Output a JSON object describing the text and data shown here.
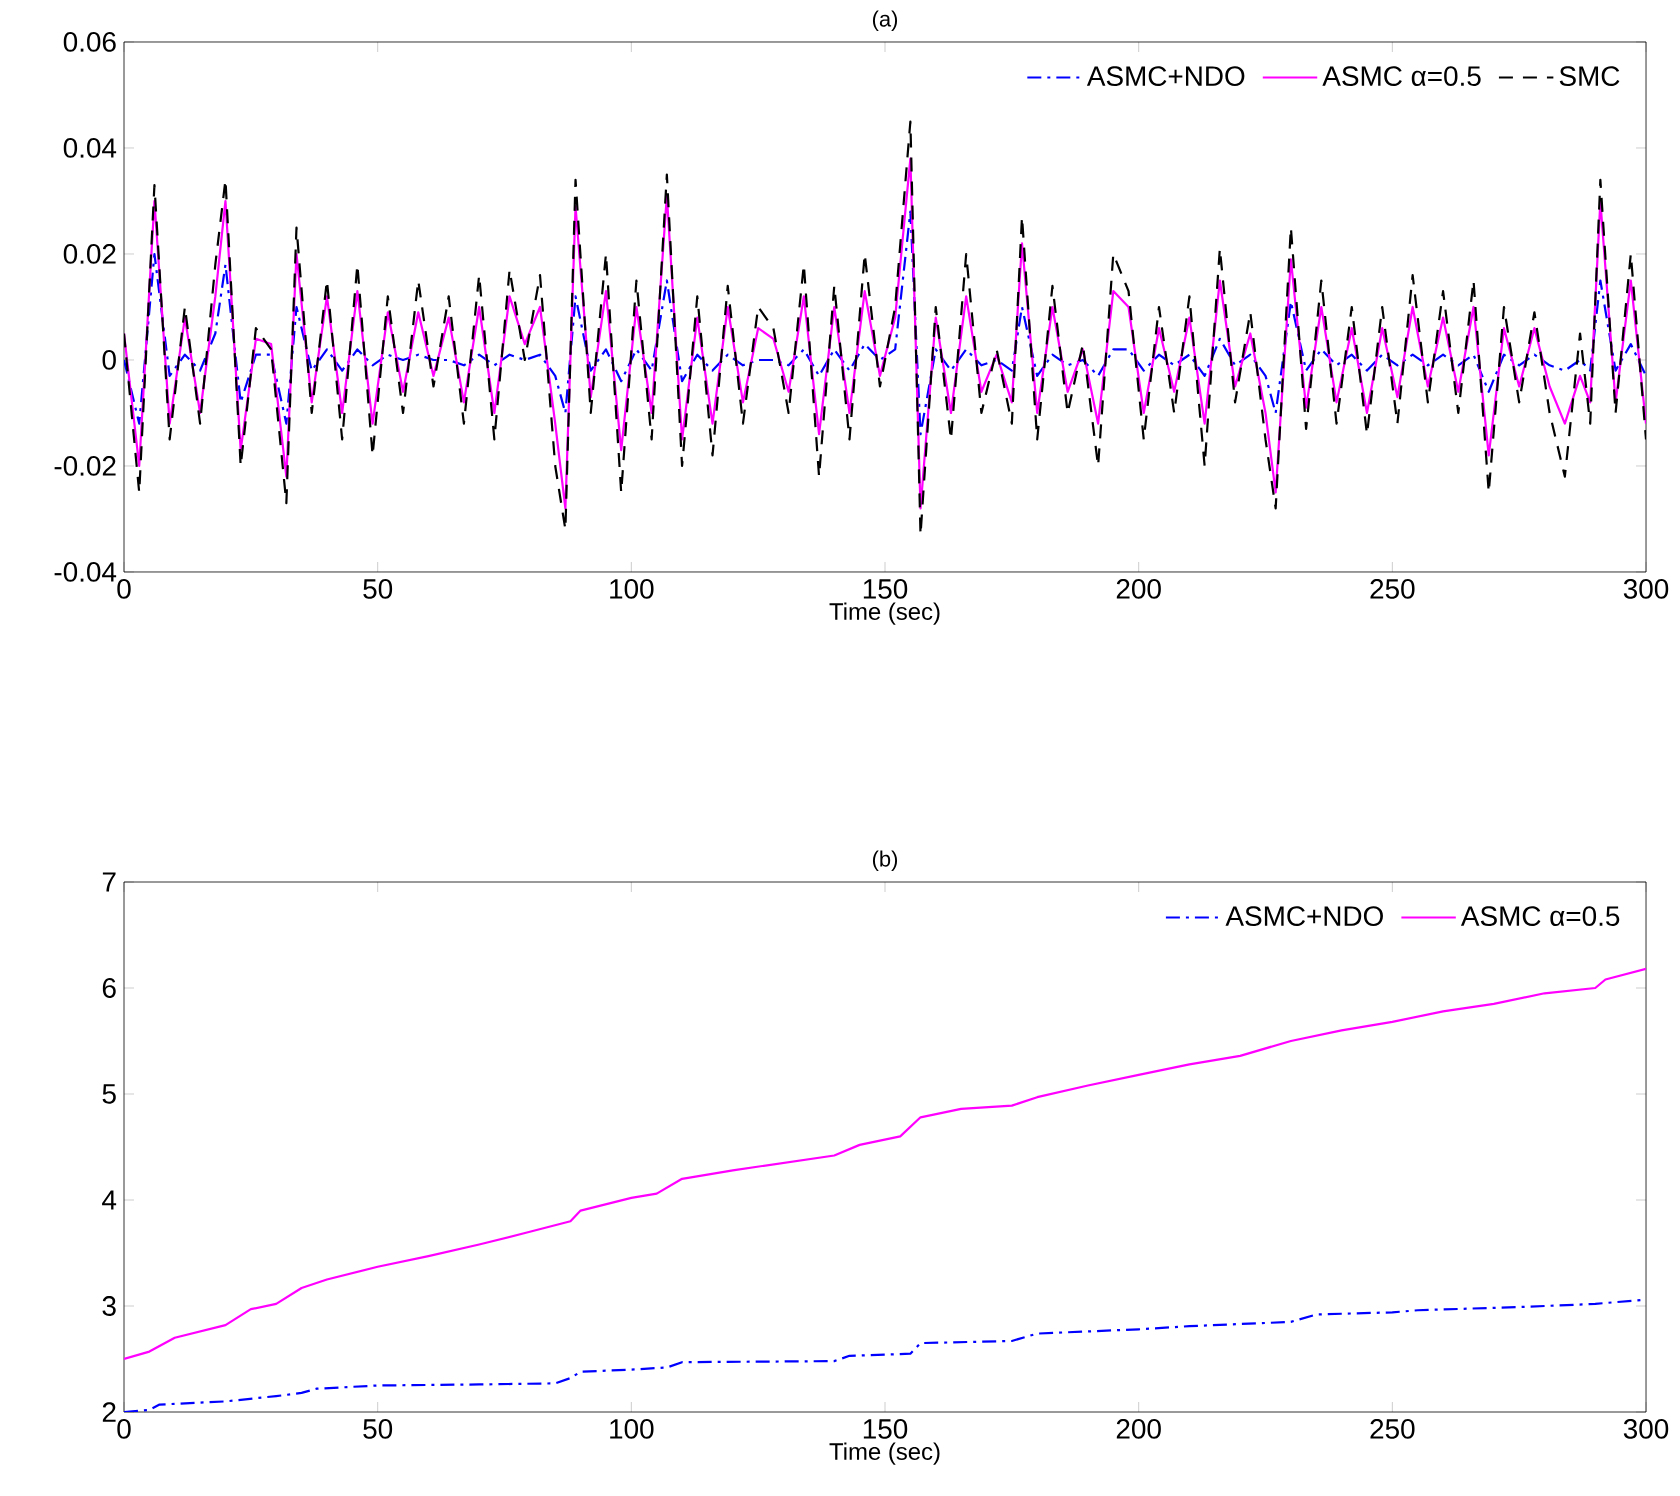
{
  "chart_data": [
    {
      "type": "line",
      "title": "(a)",
      "xlabel": "Time (sec)",
      "xlim": [
        0,
        300
      ],
      "ylim": [
        -0.04,
        0.06
      ],
      "xticks": [
        0,
        50,
        100,
        150,
        200,
        250,
        300
      ],
      "yticks": [
        -0.04,
        -0.02,
        0,
        0.02,
        0.04,
        0.06
      ],
      "legend": "top right",
      "x": [
        0,
        3,
        6,
        9,
        12,
        15,
        18,
        20,
        23,
        26,
        29,
        32,
        34,
        37,
        40,
        43,
        46,
        49,
        52,
        55,
        58,
        61,
        64,
        67,
        70,
        73,
        76,
        79,
        82,
        85,
        87,
        89,
        92,
        95,
        98,
        101,
        104,
        107,
        110,
        113,
        116,
        119,
        122,
        125,
        128,
        131,
        134,
        137,
        140,
        143,
        146,
        149,
        152,
        155,
        157,
        160,
        163,
        166,
        169,
        172,
        175,
        177,
        180,
        183,
        186,
        189,
        192,
        195,
        198,
        201,
        204,
        207,
        210,
        213,
        216,
        219,
        222,
        225,
        227,
        230,
        233,
        236,
        239,
        242,
        245,
        248,
        251,
        254,
        257,
        260,
        263,
        266,
        269,
        272,
        275,
        278,
        281,
        284,
        287,
        289,
        291,
        294,
        297,
        300
      ],
      "series": [
        {
          "name": "ASMC+NDO",
          "color": "#0000ff",
          "line_style": "dashdot",
          "values": [
            0.0,
            -0.012,
            0.02,
            -0.003,
            0.001,
            -0.002,
            0.005,
            0.018,
            -0.008,
            0.001,
            0.001,
            -0.012,
            0.01,
            -0.002,
            0.002,
            -0.002,
            0.002,
            -0.001,
            0.001,
            0.0,
            0.001,
            0.0,
            0.0,
            -0.001,
            0.001,
            -0.001,
            0.001,
            0.0,
            0.001,
            -0.003,
            -0.01,
            0.012,
            -0.002,
            0.002,
            -0.004,
            0.002,
            -0.002,
            0.015,
            -0.004,
            0.001,
            -0.002,
            0.001,
            -0.001,
            0.0,
            0.0,
            -0.001,
            0.002,
            -0.003,
            0.002,
            -0.002,
            0.003,
            0.0,
            0.002,
            0.028,
            -0.014,
            0.002,
            -0.002,
            0.002,
            -0.001,
            0.0,
            -0.002,
            0.01,
            -0.003,
            0.001,
            -0.001,
            0.0,
            -0.003,
            0.002,
            0.002,
            -0.002,
            0.001,
            -0.001,
            0.001,
            -0.003,
            0.004,
            -0.001,
            0.001,
            -0.003,
            -0.01,
            0.011,
            -0.002,
            0.002,
            -0.001,
            0.001,
            -0.002,
            0.001,
            -0.001,
            0.001,
            -0.001,
            0.001,
            -0.001,
            0.001,
            -0.006,
            0.001,
            -0.001,
            0.001,
            -0.001,
            -0.002,
            0.0,
            -0.002,
            0.015,
            -0.002,
            0.003,
            -0.003
          ]
        },
        {
          "name": "ASMC α=0.5",
          "color": "#ff00ff",
          "line_style": "solid",
          "values": [
            0.005,
            -0.02,
            0.03,
            -0.012,
            0.008,
            -0.01,
            0.012,
            0.03,
            -0.017,
            0.004,
            0.003,
            -0.022,
            0.02,
            -0.008,
            0.012,
            -0.01,
            0.013,
            -0.012,
            0.009,
            -0.006,
            0.009,
            -0.003,
            0.008,
            -0.008,
            0.01,
            -0.01,
            0.012,
            0.003,
            0.01,
            -0.012,
            -0.028,
            0.029,
            -0.007,
            0.013,
            -0.017,
            0.01,
            -0.01,
            0.031,
            -0.015,
            0.008,
            -0.012,
            0.01,
            -0.008,
            0.006,
            0.004,
            -0.006,
            0.012,
            -0.014,
            0.01,
            -0.01,
            0.013,
            -0.003,
            0.008,
            0.038,
            -0.028,
            0.008,
            -0.01,
            0.012,
            -0.006,
            0.001,
            -0.008,
            0.022,
            -0.01,
            0.01,
            -0.006,
            0.002,
            -0.012,
            0.013,
            0.01,
            -0.01,
            0.006,
            -0.006,
            0.008,
            -0.012,
            0.015,
            -0.005,
            0.005,
            -0.01,
            -0.025,
            0.019,
            -0.009,
            0.01,
            -0.008,
            0.006,
            -0.01,
            0.006,
            -0.007,
            0.01,
            -0.005,
            0.008,
            -0.006,
            0.01,
            -0.018,
            0.006,
            -0.005,
            0.006,
            -0.005,
            -0.012,
            -0.003,
            -0.008,
            0.03,
            -0.008,
            0.015,
            -0.012
          ]
        },
        {
          "name": "SMC",
          "color": "#000000",
          "line_style": "dashed",
          "values": [
            0.005,
            -0.025,
            0.033,
            -0.015,
            0.01,
            -0.012,
            0.018,
            0.034,
            -0.02,
            0.006,
            0.002,
            -0.027,
            0.025,
            -0.01,
            0.015,
            -0.015,
            0.018,
            -0.018,
            0.012,
            -0.01,
            0.015,
            -0.005,
            0.012,
            -0.012,
            0.016,
            -0.015,
            0.017,
            0.0,
            0.016,
            -0.02,
            -0.032,
            0.034,
            -0.01,
            0.02,
            -0.025,
            0.015,
            -0.015,
            0.035,
            -0.02,
            0.012,
            -0.018,
            0.014,
            -0.012,
            0.01,
            0.006,
            -0.01,
            0.018,
            -0.022,
            0.014,
            -0.015,
            0.02,
            -0.005,
            0.01,
            0.045,
            -0.033,
            0.01,
            -0.015,
            0.02,
            -0.01,
            0.002,
            -0.012,
            0.027,
            -0.015,
            0.014,
            -0.01,
            0.003,
            -0.02,
            0.02,
            0.013,
            -0.015,
            0.01,
            -0.01,
            0.012,
            -0.02,
            0.021,
            -0.008,
            0.009,
            -0.015,
            -0.028,
            0.025,
            -0.013,
            0.015,
            -0.012,
            0.01,
            -0.014,
            0.01,
            -0.012,
            0.016,
            -0.008,
            0.013,
            -0.01,
            0.015,
            -0.025,
            0.01,
            -0.008,
            0.009,
            -0.01,
            -0.022,
            0.005,
            -0.012,
            0.034,
            -0.01,
            0.02,
            -0.015
          ]
        }
      ]
    },
    {
      "type": "line",
      "title": "(b)",
      "xlabel": "Time (sec)",
      "xlim": [
        0,
        300
      ],
      "ylim": [
        2,
        7
      ],
      "xticks": [
        0,
        50,
        100,
        150,
        200,
        250,
        300
      ],
      "yticks": [
        2,
        3,
        4,
        5,
        6,
        7
      ],
      "legend": "top right",
      "series": [
        {
          "name": "ASMC+NDO",
          "color": "#0000ff",
          "line_style": "dashdot",
          "x": [
            0,
            5,
            7,
            20,
            30,
            35,
            38,
            50,
            70,
            85,
            88,
            90,
            100,
            107,
            110,
            140,
            143,
            155,
            157,
            175,
            180,
            200,
            210,
            230,
            235,
            250,
            255,
            275,
            290,
            300
          ],
          "values": [
            2.0,
            2.02,
            2.07,
            2.1,
            2.15,
            2.18,
            2.22,
            2.25,
            2.26,
            2.27,
            2.32,
            2.38,
            2.4,
            2.42,
            2.47,
            2.48,
            2.53,
            2.55,
            2.65,
            2.67,
            2.74,
            2.78,
            2.81,
            2.85,
            2.92,
            2.94,
            2.96,
            2.99,
            3.02,
            3.06
          ]
        },
        {
          "name": "ASMC α=0.5",
          "color": "#ff00ff",
          "line_style": "solid",
          "x": [
            0,
            5,
            10,
            20,
            25,
            30,
            35,
            40,
            50,
            60,
            70,
            80,
            88,
            90,
            100,
            105,
            110,
            120,
            130,
            140,
            145,
            153,
            157,
            165,
            175,
            180,
            190,
            200,
            210,
            220,
            230,
            240,
            250,
            260,
            270,
            280,
            290,
            292,
            300
          ],
          "values": [
            2.5,
            2.57,
            2.7,
            2.82,
            2.97,
            3.02,
            3.17,
            3.25,
            3.37,
            3.47,
            3.58,
            3.7,
            3.8,
            3.9,
            4.02,
            4.06,
            4.2,
            4.28,
            4.35,
            4.42,
            4.52,
            4.6,
            4.78,
            4.86,
            4.89,
            4.97,
            5.08,
            5.18,
            5.28,
            5.36,
            5.5,
            5.6,
            5.68,
            5.78,
            5.85,
            5.95,
            6.0,
            6.08,
            6.18
          ]
        }
      ]
    }
  ]
}
